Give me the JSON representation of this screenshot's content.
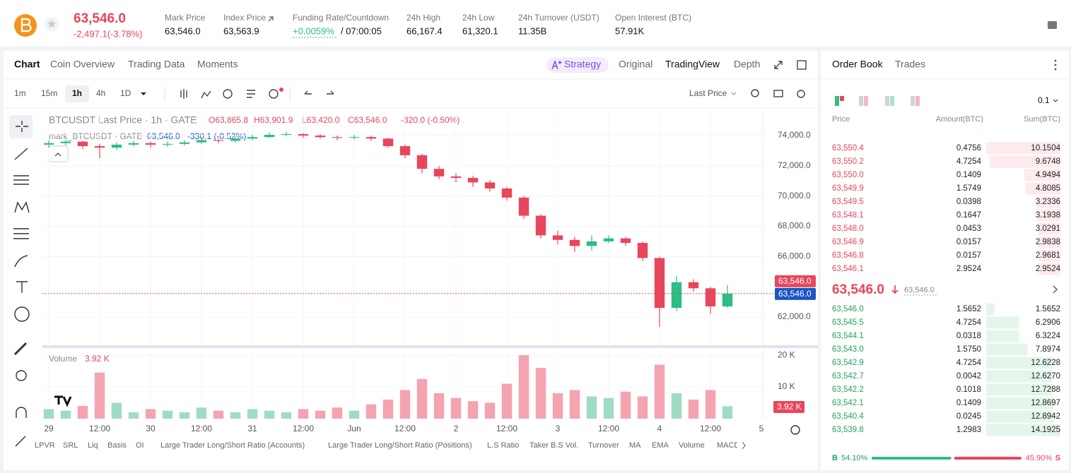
{
  "header": {
    "price": "63,546.0",
    "change": "-2,497.1(-3.78%)",
    "stats": [
      {
        "label": "Mark Price",
        "value": "63,546.0"
      },
      {
        "label": "Index Price",
        "value": "63,563.9"
      },
      {
        "label": "Funding Rate/Countdown",
        "value": "+0.0059%",
        "extra": "/ 07:00:05"
      },
      {
        "label": "24h High",
        "value": "66,167.4"
      },
      {
        "label": "24h Low",
        "value": "61,320.1"
      },
      {
        "label": "24h Turnover (USDT)",
        "value": "11.35B"
      },
      {
        "label": "Open Interest (BTC)",
        "value": "57.91K"
      }
    ]
  },
  "chart_tabs": [
    "Chart",
    "Coin Overview",
    "Trading Data",
    "Moments"
  ],
  "strategy": "Strategy",
  "view_tabs": [
    "Original",
    "TradingView",
    "Depth"
  ],
  "intervals": [
    "1m",
    "15m",
    "1h",
    "4h",
    "1D"
  ],
  "price_type": "Last Price",
  "legend": {
    "title": "BTCUSDT Last Price · 1h · GATE",
    "ohlc": [
      "O63,865.8",
      "H63,901.9",
      "L63,420.0",
      "C63,546.0",
      "-320.0 (-0.50%)"
    ],
    "mark": "mark_BTCUSDT · GATE",
    "mark_values": [
      "63,546.0",
      "-330.1 (-0.52%)"
    ]
  },
  "chart_data": [
    {
      "type": "candlestick",
      "x": [
        0,
        4,
        8,
        12,
        16,
        20,
        24,
        28,
        32,
        36,
        40,
        44,
        48,
        52,
        56,
        60,
        64,
        68,
        72,
        76,
        80,
        84,
        88,
        92,
        96,
        100,
        104,
        108,
        112,
        116,
        120,
        124,
        128,
        132,
        136,
        140,
        144,
        148,
        152,
        156,
        160
      ],
      "open": [
        73400,
        73500,
        73600,
        73300,
        73200,
        73400,
        73500,
        73400,
        73450,
        73550,
        73700,
        73650,
        73800,
        73900,
        74050,
        74100,
        74000,
        73900,
        73850,
        73900,
        73800,
        73300,
        72700,
        71800,
        71300,
        71200,
        70900,
        70500,
        69900,
        68700,
        67400,
        67100,
        66700,
        67000,
        67200,
        66900,
        65900,
        62600,
        64300,
        63900,
        62700
      ],
      "high": [
        73700,
        73750,
        73650,
        73450,
        73550,
        73650,
        73600,
        73600,
        73700,
        73850,
        73800,
        73950,
        74050,
        74200,
        74250,
        74150,
        74100,
        74000,
        74050,
        74000,
        73850,
        73400,
        72800,
        72000,
        71500,
        71350,
        71050,
        70600,
        70000,
        68800,
        67700,
        67300,
        67400,
        67400,
        67300,
        67000,
        66000,
        64700,
        64500,
        64000,
        64100
      ],
      "low": [
        73200,
        73350,
        73100,
        72500,
        73050,
        73300,
        73200,
        73250,
        73350,
        73450,
        73500,
        73550,
        73700,
        73850,
        73950,
        73850,
        73800,
        73700,
        73750,
        73650,
        73200,
        72500,
        71500,
        71100,
        70900,
        70600,
        70300,
        69700,
        68500,
        67200,
        66800,
        66300,
        66400,
        66900,
        66700,
        65700,
        61350,
        62400,
        63700,
        62200,
        62600
      ],
      "close": [
        73500,
        73600,
        73300,
        73200,
        73400,
        73500,
        73400,
        73450,
        73550,
        73700,
        73650,
        73800,
        73900,
        74050,
        74100,
        74000,
        73900,
        73850,
        73900,
        73800,
        73300,
        72700,
        71800,
        71300,
        71200,
        70900,
        70500,
        69900,
        68700,
        67400,
        67100,
        66700,
        67000,
        67200,
        66900,
        65900,
        62600,
        64300,
        63900,
        62700,
        63546
      ],
      "up_color": "#2ebd85",
      "down_color": "#e8465c",
      "xlim": [
        -1.5,
        168.5
      ],
      "xticks": [
        {
          "value": 0,
          "label": "29"
        },
        {
          "value": 12,
          "label": "12:00"
        },
        {
          "value": 24,
          "label": "30"
        },
        {
          "value": 36,
          "label": "12:00"
        },
        {
          "value": 48,
          "label": "31"
        },
        {
          "value": 60,
          "label": "12:00"
        },
        {
          "value": 72,
          "label": "Jun"
        },
        {
          "value": 84,
          "label": "12:00"
        },
        {
          "value": 96,
          "label": "2"
        },
        {
          "value": 108,
          "label": "12:00"
        },
        {
          "value": 120,
          "label": "3"
        },
        {
          "value": 132,
          "label": "12:00"
        },
        {
          "value": 144,
          "label": "4"
        },
        {
          "value": 156,
          "label": "12:00"
        },
        {
          "value": 168,
          "label": "5"
        }
      ],
      "ylim": [
        60180,
        75590
      ],
      "yticks": [
        {
          "value": 62000,
          "label": "62,000.0"
        },
        {
          "value": 66000,
          "label": "66,000.0"
        },
        {
          "value": 68000,
          "label": "68,000.0"
        },
        {
          "value": 70000,
          "label": "70,000.0"
        },
        {
          "value": 72000,
          "label": "72,000.0"
        },
        {
          "value": 74000,
          "label": "74,000.0"
        }
      ],
      "grid": true,
      "last_price": 63546,
      "last_price_label": "63,546.0",
      "mark_price_label": "63,546.0"
    },
    {
      "type": "bar",
      "title": "Volume",
      "title_value": "3.92 K",
      "x": [
        0,
        4,
        8,
        12,
        16,
        20,
        24,
        28,
        32,
        36,
        40,
        44,
        48,
        52,
        56,
        60,
        64,
        68,
        72,
        76,
        80,
        84,
        88,
        92,
        96,
        100,
        104,
        108,
        112,
        116,
        120,
        124,
        128,
        132,
        136,
        140,
        144,
        148,
        152,
        156,
        160
      ],
      "values": [
        3000,
        2500,
        4000,
        14500,
        5000,
        2000,
        3000,
        2500,
        2000,
        3500,
        2500,
        2000,
        3000,
        2500,
        2000,
        3000,
        2500,
        3500,
        2500,
        4500,
        6000,
        9000,
        12500,
        8000,
        6500,
        5500,
        5000,
        11000,
        20000,
        16000,
        8000,
        9000,
        7000,
        6500,
        8500,
        7000,
        17000,
        8000,
        6000,
        9000,
        3920
      ],
      "xlim": [
        -1.5,
        168.5
      ],
      "ylim": [
        0,
        21800
      ],
      "yticks": [
        {
          "value": 10000,
          "label": "10 K"
        },
        {
          "value": 20000,
          "label": "20 K"
        }
      ],
      "last_label": "3.92 K"
    }
  ],
  "indicators": [
    "LPVR",
    "SRL",
    "Liq",
    "Basis",
    "OI",
    "Large Trader Long/Short Ratio (Accounts)",
    "Large Trader Long/Short Ratio (Positions)",
    "L.S Ratio",
    "Taker B.S Vol.",
    "Turnover",
    "MA",
    "EMA",
    "Volume",
    "MACD"
  ],
  "order_book": {
    "tabs": [
      "Order Book",
      "Trades"
    ],
    "precision": "0.1",
    "columns": [
      "Price",
      "Amount(BTC)",
      "Sum(BTC)"
    ],
    "asks": [
      {
        "price": "63,550.4",
        "amount": "0.4756",
        "sum": 10.1504
      },
      {
        "price": "63,550.2",
        "amount": "4.7254",
        "sum": 9.6748
      },
      {
        "price": "63,550.0",
        "amount": "0.1409",
        "sum": 4.9494
      },
      {
        "price": "63,549.9",
        "amount": "1.5749",
        "sum": 4.8085
      },
      {
        "price": "63,549.5",
        "amount": "0.0398",
        "sum": 3.2336
      },
      {
        "price": "63,548.1",
        "amount": "0.1647",
        "sum": 3.1938
      },
      {
        "price": "63,548.0",
        "amount": "0.0453",
        "sum": 3.0291
      },
      {
        "price": "63,546.9",
        "amount": "0.0157",
        "sum": 2.9838
      },
      {
        "price": "63,546.8",
        "amount": "0.0157",
        "sum": 2.9681
      },
      {
        "price": "63,546.1",
        "amount": "2.9524",
        "sum": 2.9524
      }
    ],
    "mid": {
      "price": "63,546.0",
      "mark": "63,546.0"
    },
    "bids": [
      {
        "price": "63,546.0",
        "amount": "1.5652",
        "sum": 1.5652
      },
      {
        "price": "63,545.5",
        "amount": "4.7254",
        "sum": 6.2906
      },
      {
        "price": "63,544.1",
        "amount": "0.0318",
        "sum": 6.3224
      },
      {
        "price": "63,543.0",
        "amount": "1.5750",
        "sum": 7.8974
      },
      {
        "price": "63,542.9",
        "amount": "4.7254",
        "sum": 12.6228
      },
      {
        "price": "63,542.7",
        "amount": "0.0042",
        "sum": 12.627,
        "sum_label": "12.6270"
      },
      {
        "price": "63,542.2",
        "amount": "0.1018",
        "sum": 12.7288
      },
      {
        "price": "63,542.1",
        "amount": "0.1409",
        "sum": 12.8697
      },
      {
        "price": "63,540.4",
        "amount": "0.0245",
        "sum": 12.8942
      },
      {
        "price": "63,539.8",
        "amount": "1.2983",
        "sum": 14.1925
      }
    ],
    "ratio": {
      "buy_label": "B",
      "buy": 54.1,
      "buy_text": "54.10%",
      "sell": 45.9,
      "sell_text": "45.90%",
      "sell_label": "S"
    }
  }
}
